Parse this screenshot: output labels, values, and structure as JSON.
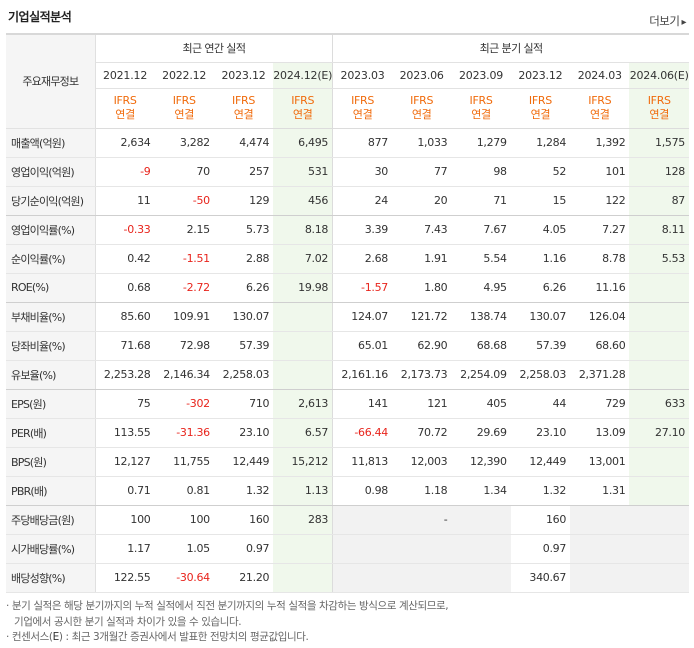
{
  "section": {
    "title": "기업실적분석",
    "more_label": "더보기",
    "more_arrow": "▸"
  },
  "table": {
    "corner_label": "주요재무정보",
    "groups": [
      {
        "label": "최근 연간 실적"
      },
      {
        "label": "최근 분기 실적"
      }
    ],
    "periods": [
      {
        "label": "2021.12",
        "std": "IFRS",
        "std2": "연결",
        "estimate": false
      },
      {
        "label": "2022.12",
        "std": "IFRS",
        "std2": "연결",
        "estimate": false
      },
      {
        "label": "2023.12",
        "std": "IFRS",
        "std2": "연결",
        "estimate": false
      },
      {
        "label": "2024.12(E)",
        "std": "IFRS",
        "std2": "연결",
        "estimate": true
      },
      {
        "label": "2023.03",
        "std": "IFRS",
        "std2": "연결",
        "estimate": false
      },
      {
        "label": "2023.06",
        "std": "IFRS",
        "std2": "연결",
        "estimate": false
      },
      {
        "label": "2023.09",
        "std": "IFRS",
        "std2": "연결",
        "estimate": false
      },
      {
        "label": "2023.12",
        "std": "IFRS",
        "std2": "연결",
        "estimate": false
      },
      {
        "label": "2024.03",
        "std": "IFRS",
        "std2": "연결",
        "estimate": false
      },
      {
        "label": "2024.06(E)",
        "std": "IFRS",
        "std2": "연결",
        "estimate": true
      }
    ],
    "rows": [
      {
        "label": "매출액(억원)",
        "values": [
          "2,634",
          "3,282",
          "4,474",
          "6,495",
          "877",
          "1,033",
          "1,279",
          "1,284",
          "1,392",
          "1,575"
        ]
      },
      {
        "label": "영업이익(억원)",
        "values": [
          "-9",
          "70",
          "257",
          "531",
          "30",
          "77",
          "98",
          "52",
          "101",
          "128"
        ]
      },
      {
        "label": "당기순이익(억원)",
        "values": [
          "11",
          "-50",
          "129",
          "456",
          "24",
          "20",
          "71",
          "15",
          "122",
          "87"
        ]
      },
      {
        "label": "영업이익률(%)",
        "values": [
          "-0.33",
          "2.15",
          "5.73",
          "8.18",
          "3.39",
          "7.43",
          "7.67",
          "4.05",
          "7.27",
          "8.11"
        ]
      },
      {
        "label": "순이익률(%)",
        "values": [
          "0.42",
          "-1.51",
          "2.88",
          "7.02",
          "2.68",
          "1.91",
          "5.54",
          "1.16",
          "8.78",
          "5.53"
        ]
      },
      {
        "label": "ROE(%)",
        "values": [
          "0.68",
          "-2.72",
          "6.26",
          "19.98",
          "-1.57",
          "1.80",
          "4.95",
          "6.26",
          "11.16",
          ""
        ]
      },
      {
        "label": "부채비율(%)",
        "values": [
          "85.60",
          "109.91",
          "130.07",
          "",
          "124.07",
          "121.72",
          "138.74",
          "130.07",
          "126.04",
          ""
        ]
      },
      {
        "label": "당좌비율(%)",
        "values": [
          "71.68",
          "72.98",
          "57.39",
          "",
          "65.01",
          "62.90",
          "68.68",
          "57.39",
          "68.60",
          ""
        ]
      },
      {
        "label": "유보율(%)",
        "values": [
          "2,253.28",
          "2,146.34",
          "2,258.03",
          "",
          "2,161.16",
          "2,173.73",
          "2,254.09",
          "2,258.03",
          "2,371.28",
          ""
        ]
      },
      {
        "label": "EPS(원)",
        "values": [
          "75",
          "-302",
          "710",
          "2,613",
          "141",
          "121",
          "405",
          "44",
          "729",
          "633"
        ]
      },
      {
        "label": "PER(배)",
        "values": [
          "113.55",
          "-31.36",
          "23.10",
          "6.57",
          "-66.44",
          "70.72",
          "29.69",
          "23.10",
          "13.09",
          "27.10"
        ]
      },
      {
        "label": "BPS(원)",
        "values": [
          "12,127",
          "11,755",
          "12,449",
          "15,212",
          "11,813",
          "12,003",
          "12,390",
          "12,449",
          "13,001",
          ""
        ]
      },
      {
        "label": "PBR(배)",
        "values": [
          "0.71",
          "0.81",
          "1.32",
          "1.13",
          "0.98",
          "1.18",
          "1.34",
          "1.32",
          "1.31",
          ""
        ]
      },
      {
        "label": "주당배당금(원)",
        "values": [
          "100",
          "100",
          "160",
          "283",
          "",
          "-",
          "",
          "160",
          "",
          ""
        ]
      },
      {
        "label": "시가배당률(%)",
        "values": [
          "1.17",
          "1.05",
          "0.97",
          "",
          "",
          "",
          "",
          "0.97",
          "",
          ""
        ]
      },
      {
        "label": "배당성향(%)",
        "values": [
          "122.55",
          "-30.64",
          "21.20",
          "",
          "",
          "",
          "",
          "340.67",
          "",
          ""
        ]
      }
    ]
  },
  "notes": {
    "line1": "· 분기 실적은 해당 분기까지의 누적 실적에서 직전 분기까지의 누적 실적을 차감하는 방식으로 계산되므로,",
    "line2": "기업에서 공시한 분기 실적과 차이가 있을 수 있습니다.",
    "line3_a": "· 컨센서스(",
    "line3_e": "E",
    "line3_b": ") : 최근 3개월간 증권사에서 발표한 전망치의 평균값입니다."
  },
  "colors": {
    "negative": "#e8241c",
    "accounting_standard": "#f06b0c",
    "estimate_column_bg": "#f0f8ec",
    "label_column_bg": "#f5f5f5"
  }
}
